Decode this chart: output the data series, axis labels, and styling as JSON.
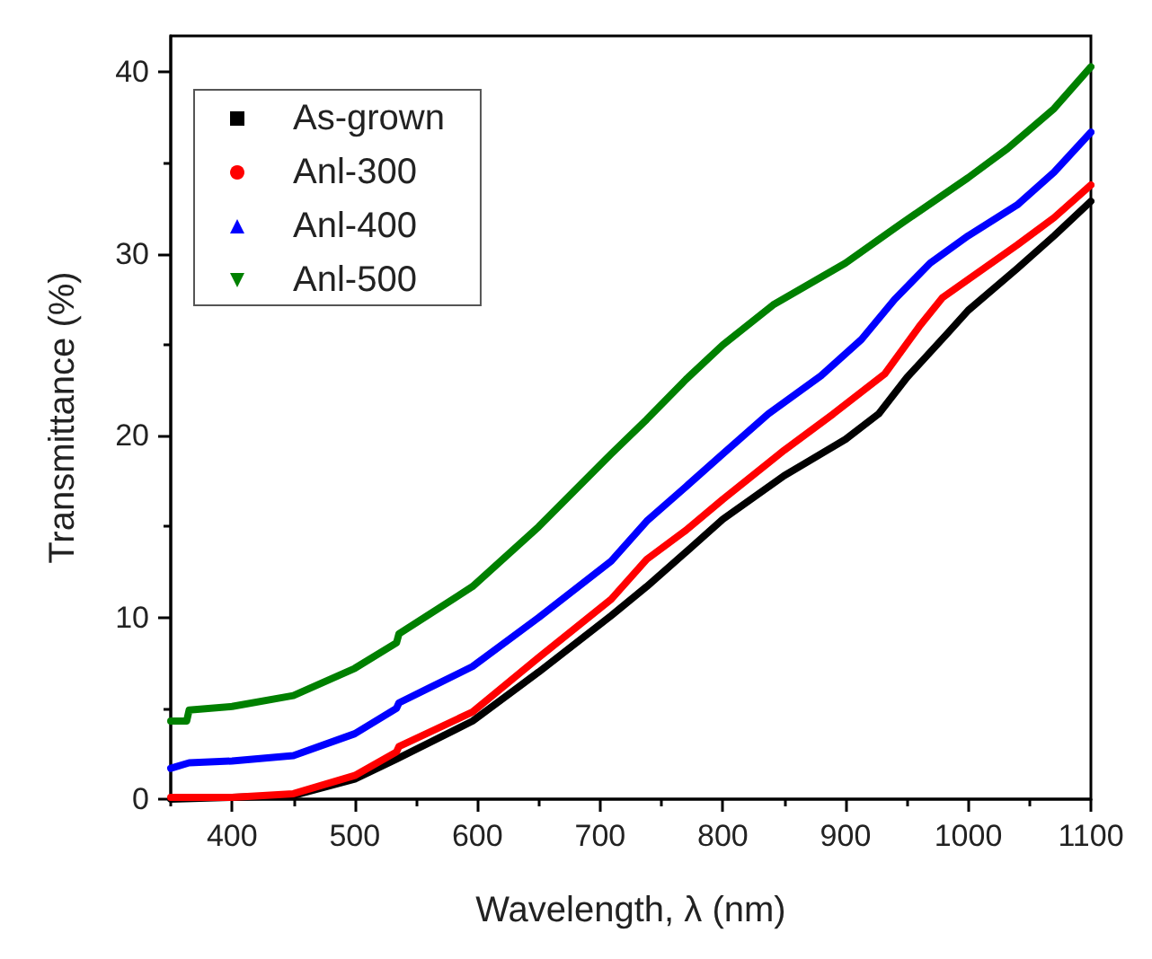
{
  "chart_data": {
    "type": "line",
    "xlabel": "Wavelength, λ (nm)",
    "ylabel": "Transmittance (%)",
    "xlim": [
      350,
      1100
    ],
    "xticks": [
      400,
      500,
      600,
      700,
      800,
      900,
      1000,
      1100
    ],
    "ylim": [
      0,
      42
    ],
    "yticks": [
      0,
      10,
      20,
      30,
      40
    ],
    "grid": false,
    "legend": "top left",
    "marker": "none",
    "line_style": "solid",
    "series": [
      {
        "name": "As-grown",
        "color": "#000000",
        "x": [
          350,
          400,
          450,
          500,
          534,
          596,
          650,
          709,
          738,
          770,
          800,
          850,
          900,
          927,
          950,
          984,
          1000,
          1040,
          1070,
          1100
        ],
        "values": [
          0,
          0.1,
          0.2,
          1.1,
          2.2,
          4.3,
          7.0,
          10.1,
          11.7,
          13.6,
          15.4,
          17.8,
          19.8,
          21.2,
          23.2,
          25.7,
          26.9,
          29.2,
          31.0,
          32.9
        ]
      },
      {
        "name": "Anl-300",
        "color": "#ff0000",
        "x": [
          350,
          400,
          450,
          500,
          534,
          536,
          596,
          650,
          709,
          738,
          770,
          800,
          850,
          890,
          932,
          960,
          979,
          1000,
          1040,
          1070,
          1100
        ],
        "values": [
          0.1,
          0.1,
          0.3,
          1.3,
          2.6,
          2.9,
          4.8,
          7.8,
          11.0,
          13.2,
          14.8,
          16.5,
          19.2,
          21.2,
          23.4,
          26.0,
          27.6,
          28.6,
          30.5,
          32.0,
          33.8
        ]
      },
      {
        "name": "Anl-400",
        "color": "#0000ff",
        "x": [
          350,
          365,
          400,
          450,
          500,
          534,
          536,
          596,
          650,
          709,
          738,
          770,
          800,
          837,
          880,
          913,
          940,
          969,
          1000,
          1040,
          1070,
          1100
        ],
        "values": [
          1.7,
          2.0,
          2.1,
          2.4,
          3.6,
          5.0,
          5.3,
          7.3,
          10.0,
          13.1,
          15.3,
          17.2,
          19.0,
          21.2,
          23.3,
          25.3,
          27.5,
          29.5,
          31.0,
          32.7,
          34.5,
          36.7
        ]
      },
      {
        "name": "Anl-500",
        "color": "#008000",
        "x": [
          350,
          363,
          365,
          400,
          450,
          500,
          534,
          536,
          596,
          650,
          709,
          738,
          770,
          800,
          841,
          900,
          946,
          1000,
          1032,
          1070,
          1100
        ],
        "values": [
          4.3,
          4.3,
          4.9,
          5.1,
          5.7,
          7.2,
          8.6,
          9.1,
          11.7,
          15.0,
          19.0,
          20.9,
          23.1,
          25.0,
          27.2,
          29.5,
          31.7,
          34.2,
          35.8,
          38.0,
          40.3
        ]
      }
    ]
  }
}
